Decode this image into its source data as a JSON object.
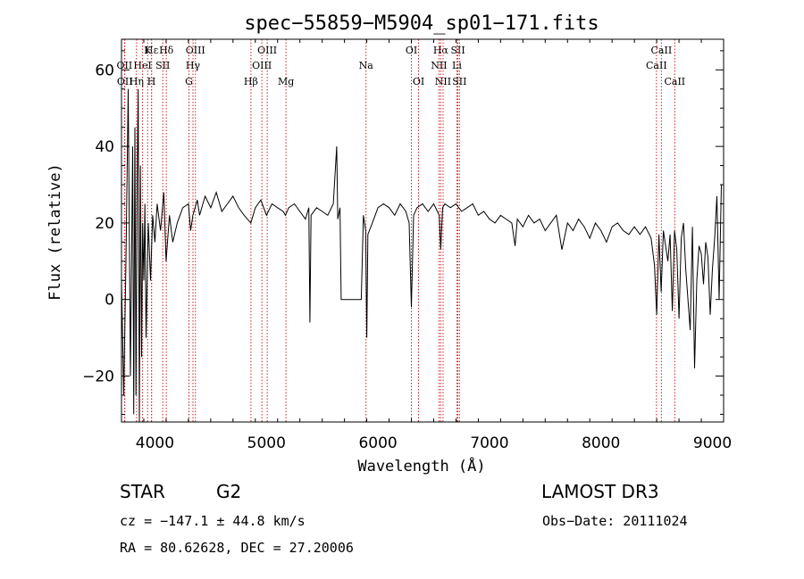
{
  "chart_data": {
    "type": "line",
    "title": "spec−55859−M5904_sp01−171.fits",
    "xlabel": "Wavelength (Å)",
    "ylabel": "Flux (relative)",
    "xlim": [
      3700,
      9100
    ],
    "ylim": [
      -32,
      68
    ],
    "xticks": [
      4000,
      5000,
      6000,
      7000,
      8000,
      9000
    ],
    "yticks": [
      -20,
      0,
      20,
      40,
      60
    ],
    "colors": {
      "spectrum": "#000000",
      "lines": "#cc2222",
      "frame": "#000000"
    },
    "series": [
      {
        "name": "flux",
        "x": [
          3700,
          3720,
          3740,
          3760,
          3780,
          3800,
          3810,
          3820,
          3830,
          3840,
          3850,
          3860,
          3870,
          3880,
          3890,
          3900,
          3910,
          3920,
          3940,
          3960,
          3980,
          4000,
          4020,
          4050,
          4080,
          4100,
          4130,
          4160,
          4200,
          4250,
          4300,
          4320,
          4340,
          4380,
          4400,
          4450,
          4500,
          4550,
          4600,
          4650,
          4700,
          4750,
          4800,
          4860,
          4900,
          4950,
          5000,
          5050,
          5100,
          5150,
          5170,
          5200,
          5250,
          5300,
          5350,
          5380,
          5390,
          5400,
          5450,
          5500,
          5550,
          5600,
          5630,
          5640,
          5660,
          5670,
          5700,
          5800,
          5850,
          5870,
          5890,
          5900,
          5910,
          5950,
          6000,
          6050,
          6100,
          6150,
          6200,
          6250,
          6280,
          6300,
          6320,
          6350,
          6400,
          6450,
          6500,
          6550,
          6563,
          6580,
          6600,
          6650,
          6700,
          6750,
          6800,
          6850,
          6900,
          6950,
          7000,
          7050,
          7100,
          7150,
          7200,
          7230,
          7250,
          7300,
          7350,
          7400,
          7450,
          7500,
          7550,
          7600,
          7650,
          7700,
          7750,
          7800,
          7850,
          7900,
          7950,
          8000,
          8050,
          8100,
          8150,
          8200,
          8250,
          8300,
          8350,
          8400,
          8450,
          8480,
          8500,
          8520,
          8540,
          8560,
          8600,
          8620,
          8640,
          8660,
          8680,
          8700,
          8720,
          8740,
          8760,
          8800,
          8820,
          8840,
          8860,
          8880,
          8900,
          8920,
          8940,
          8960,
          8980,
          9000,
          9020,
          9040,
          9060,
          9080
        ],
        "y": [
          5,
          -25,
          10,
          55,
          -20,
          40,
          -30,
          45,
          -25,
          30,
          55,
          -32,
          35,
          -15,
          20,
          5,
          25,
          -10,
          20,
          5,
          22,
          15,
          25,
          18,
          28,
          10,
          22,
          15,
          20,
          24,
          25,
          18,
          22,
          26,
          22,
          27,
          24,
          28,
          23,
          25,
          27,
          24,
          22,
          20,
          24,
          26,
          22,
          25,
          24,
          23,
          22,
          24,
          25,
          23,
          21,
          24,
          -6,
          22,
          24,
          23,
          22,
          25,
          40,
          21,
          24,
          0,
          0,
          0,
          0,
          22,
          18,
          -10,
          17,
          20,
          24,
          25,
          24,
          22,
          25,
          23,
          20,
          -2,
          22,
          24,
          25,
          23,
          25,
          22,
          13,
          24,
          25,
          24,
          25,
          23,
          24,
          25,
          22,
          23,
          21,
          20,
          22,
          21,
          20,
          14,
          21,
          19,
          22,
          20,
          21,
          18,
          20,
          22,
          13,
          20,
          18,
          21,
          19,
          16,
          20,
          18,
          15,
          19,
          20,
          18,
          17,
          19,
          17,
          19,
          16,
          9,
          -4,
          17,
          2,
          18,
          10,
          17,
          -3,
          18,
          13,
          -5,
          16,
          20,
          8,
          -8,
          19,
          -18,
          5,
          14,
          12,
          4,
          15,
          11,
          -4,
          8,
          16,
          27,
          0,
          30
        ]
      }
    ],
    "lines": [
      {
        "name": "Hε",
        "wave": 3970,
        "row": 1
      },
      {
        "name": "OII",
        "wave": 3727,
        "row": 2
      },
      {
        "name": "OII",
        "wave": 3730,
        "row": 3
      },
      {
        "name": "HeI",
        "wave": 3889,
        "row": 2
      },
      {
        "name": "Hη",
        "wave": 3835,
        "row": 3
      },
      {
        "name": "K",
        "wave": 3934,
        "row": 1
      },
      {
        "name": "H",
        "wave": 3969,
        "row": 3
      },
      {
        "name": "SII",
        "wave": 4070,
        "row": 2
      },
      {
        "name": "Hδ",
        "wave": 4102,
        "row": 1
      },
      {
        "name": "OIII",
        "wave": 4363,
        "row": 1
      },
      {
        "name": "Hγ",
        "wave": 4341,
        "row": 2
      },
      {
        "name": "G",
        "wave": 4305,
        "row": 3
      },
      {
        "name": "OIII",
        "wave": 5007,
        "row": 1
      },
      {
        "name": "OIII",
        "wave": 4959,
        "row": 2
      },
      {
        "name": "Hβ",
        "wave": 4861,
        "row": 3
      },
      {
        "name": "Mg",
        "wave": 5175,
        "row": 3
      },
      {
        "name": "Na",
        "wave": 5893,
        "row": 2
      },
      {
        "name": "OI",
        "wave": 6300,
        "row": 1
      },
      {
        "name": "OI",
        "wave": 6364,
        "row": 3
      },
      {
        "name": "Hα",
        "wave": 6563,
        "row": 1
      },
      {
        "name": "SII",
        "wave": 6717,
        "row": 1
      },
      {
        "name": "NII",
        "wave": 6548,
        "row": 2
      },
      {
        "name": "Li",
        "wave": 6708,
        "row": 2
      },
      {
        "name": "NII",
        "wave": 6584,
        "row": 3
      },
      {
        "name": "SII",
        "wave": 6731,
        "row": 3
      },
      {
        "name": "CaII",
        "wave": 8542,
        "row": 1
      },
      {
        "name": "CaII",
        "wave": 8498,
        "row": 2
      },
      {
        "name": "CaII",
        "wave": 8662,
        "row": 3
      }
    ]
  },
  "info": {
    "object_class": "STAR",
    "subclass": "G2",
    "survey": "LAMOST DR3",
    "cz": "cz = −147.1 ± 44.8 km/s",
    "obs_date": "Obs−Date: 20111024",
    "coords": "RA =  80.62628, DEC =  27.20006"
  }
}
